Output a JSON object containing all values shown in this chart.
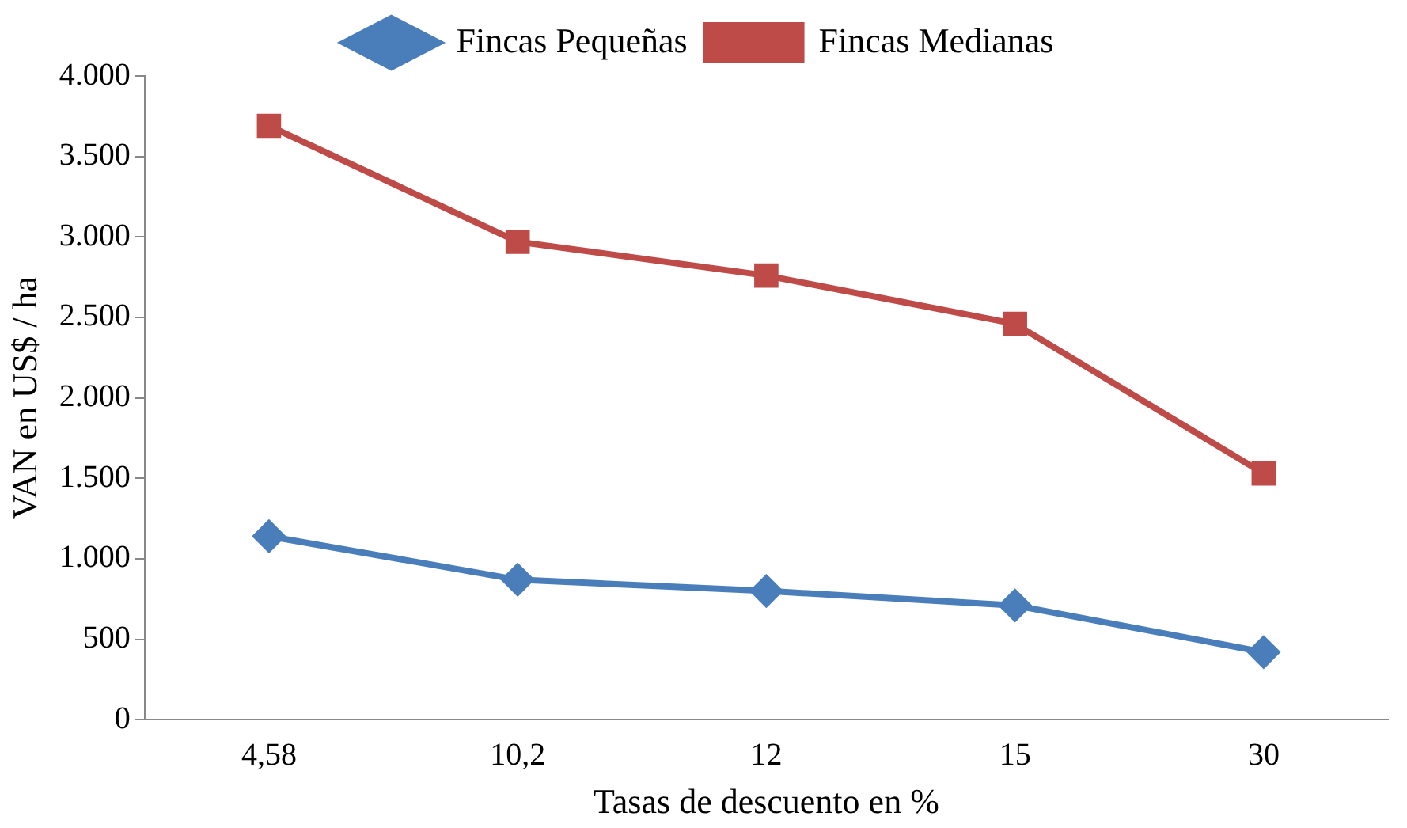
{
  "chart_data": {
    "type": "line",
    "xlabel": "Tasas de descuento en %",
    "ylabel": "VAN en US$ / ha",
    "categories": [
      "4,58",
      "10,2",
      "12",
      "15",
      "30"
    ],
    "series": [
      {
        "name": "Fincas Pequeñas",
        "color": "#4a7ebb",
        "marker": "diamond",
        "values": [
          1140,
          870,
          800,
          710,
          420
        ]
      },
      {
        "name": "Fincas Medianas",
        "color": "#be4b48",
        "marker": "square",
        "values": [
          3690,
          2970,
          2760,
          2460,
          1530
        ]
      }
    ],
    "ylim": [
      0,
      4000
    ],
    "yticks": [
      {
        "value": 0,
        "label": "0"
      },
      {
        "value": 500,
        "label": "500"
      },
      {
        "value": 1000,
        "label": "1.000"
      },
      {
        "value": 1500,
        "label": "1.500"
      },
      {
        "value": 2000,
        "label": "2.000"
      },
      {
        "value": 2500,
        "label": "2.500"
      },
      {
        "value": 3000,
        "label": "3.000"
      },
      {
        "value": 3500,
        "label": "3.500"
      },
      {
        "value": 4000,
        "label": "4.000"
      }
    ],
    "grid": false,
    "legend": "top",
    "line_style": "solid"
  }
}
